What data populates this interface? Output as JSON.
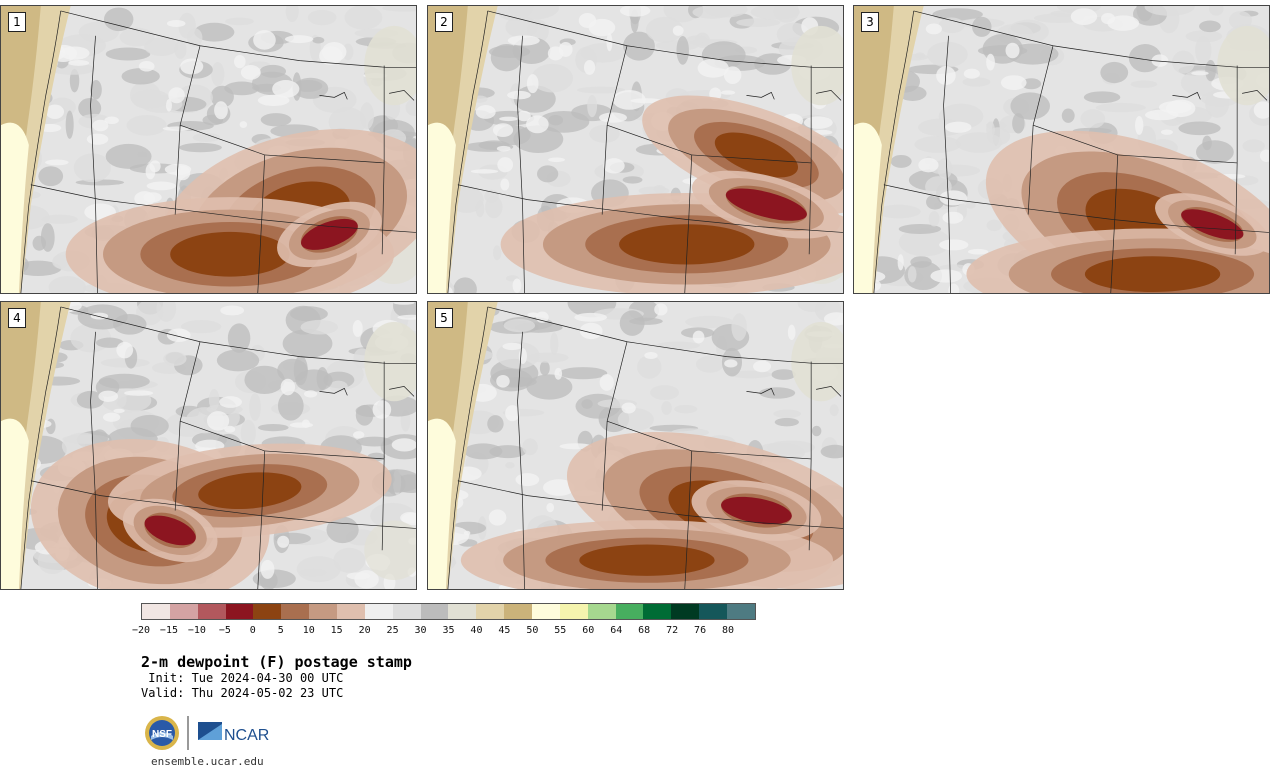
{
  "panels": [
    {
      "label": "1"
    },
    {
      "label": "2"
    },
    {
      "label": "3"
    },
    {
      "label": "4"
    },
    {
      "label": "5"
    }
  ],
  "colorbar": {
    "colors": [
      "#f1e6e3",
      "#d4a3a3",
      "#b2585d",
      "#8c1520",
      "#8c4312",
      "#a96f4f",
      "#c59a82",
      "#dfbfae",
      "#efefef",
      "#dedede",
      "#bcbcbc",
      "#e1e0d4",
      "#e2d3aa",
      "#cbb37a",
      "#fefcdc",
      "#f5f4ae",
      "#a6d88f",
      "#47ae5f",
      "#006c35",
      "#003a22",
      "#15575a",
      "#4e7b82"
    ],
    "tick_labels": [
      "−20",
      "−15",
      "−10",
      "−5",
      "0",
      "5",
      "10",
      "15",
      "20",
      "25",
      "30",
      "35",
      "40",
      "45",
      "50",
      "55",
      "60",
      "64",
      "68",
      "72",
      "76",
      "80"
    ]
  },
  "title": "2-m dewpoint (F) postage stamp",
  "init": " Init: Tue 2024-04-30 00 UTC",
  "valid": "Valid: Thu 2024-05-02 23 UTC",
  "logos": {
    "nsf": "NSF",
    "ncar": "NCAR"
  },
  "url": "ensemble.ucar.edu"
}
